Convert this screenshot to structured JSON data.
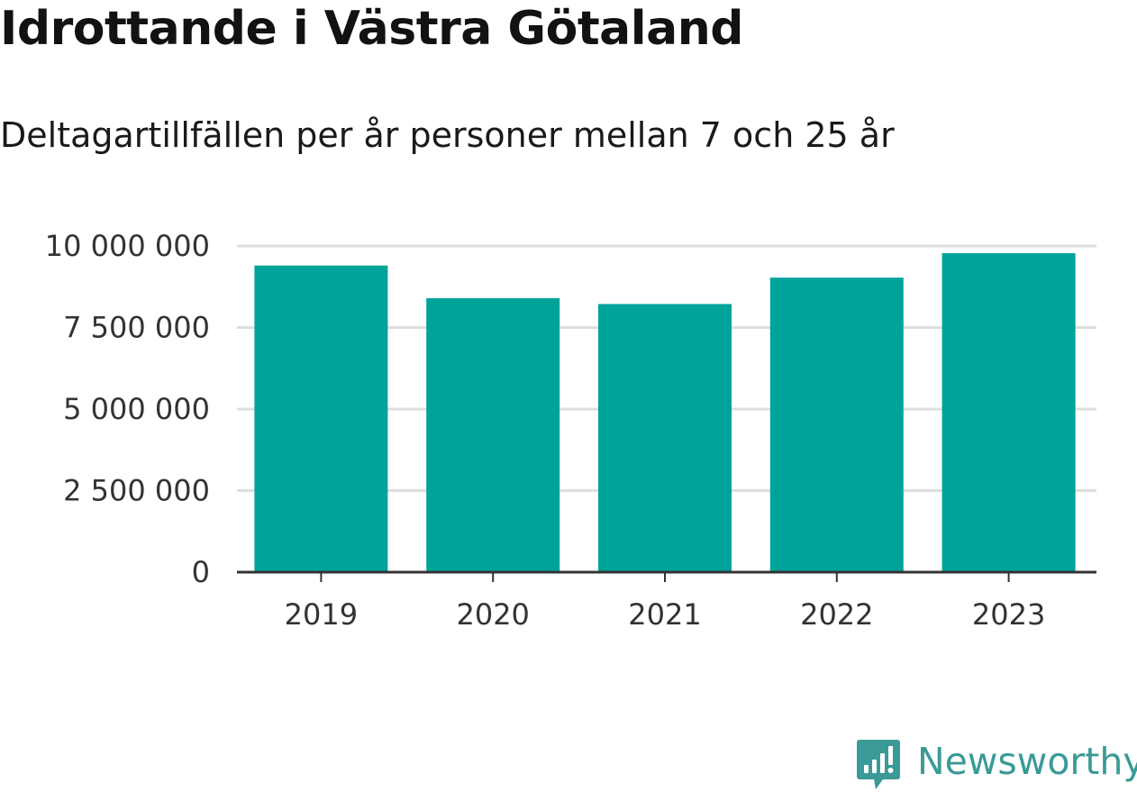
{
  "header": {
    "title": "Idrottande i Västra Götaland",
    "subtitle": "Deltagartillfällen per år personer mellan 7 och 25 år"
  },
  "brand": {
    "name": "Newsworthy",
    "icon": "bar-chart-speech-bubble-icon",
    "color": "#3a9a96"
  },
  "chart_data": {
    "type": "bar",
    "categories": [
      "2019",
      "2020",
      "2021",
      "2022",
      "2023"
    ],
    "values": [
      9400000,
      8400000,
      8220000,
      9030000,
      9780000
    ],
    "ylim": [
      0,
      10000000
    ],
    "yticks": [
      0,
      2500000,
      5000000,
      7500000,
      10000000
    ],
    "ytick_labels": [
      "0",
      "2 500 000",
      "5 000 000",
      "7 500 000",
      "10 000 000"
    ],
    "grid": true,
    "bar_color": "#00a39a",
    "grid_color": "#dedede",
    "axis_color": "#333333"
  }
}
